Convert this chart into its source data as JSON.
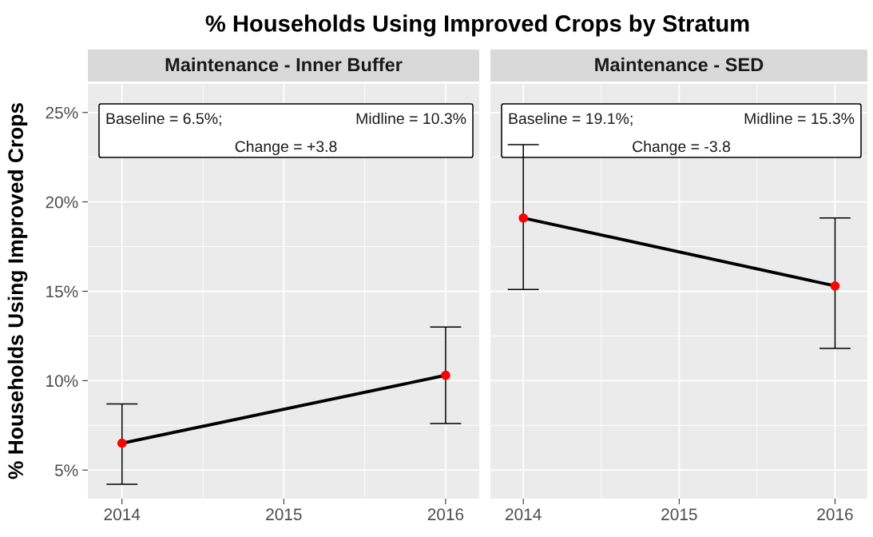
{
  "chart_data": [
    {
      "type": "line",
      "subtitle": "% Households Using Improved Crops by Stratum",
      "title": "Maintenance - Inner Buffer",
      "ylabel": "% Households Using Improved Crops",
      "x": [
        "2014",
        "2016"
      ],
      "xlim": [
        "2013-10-16",
        "2016-03-17"
      ],
      "xticks": [
        "2014",
        "2015",
        "2016"
      ],
      "ylim": [
        3.4,
        26.6
      ],
      "yticks": [
        {
          "value": 5,
          "label": "5%"
        },
        {
          "value": 10,
          "label": "10%"
        },
        {
          "value": 15,
          "label": "15%"
        },
        {
          "value": 20,
          "label": "20%"
        },
        {
          "value": 25,
          "label": "25%"
        }
      ],
      "grid": true,
      "annotations": [
        "Baseline = 6.5%;",
        "Midline = 10.3%",
        "Change = +3.8"
      ],
      "series": [
        {
          "color": "#000000",
          "values": [
            6.5,
            10.3
          ]
        },
        {
          "type": "scatter",
          "color": "#ff0000",
          "marker": "circle",
          "values": [
            6.5,
            10.3
          ],
          "errors": [
            [
              4.2,
              8.7
            ],
            [
              7.6,
              13.0
            ]
          ]
        }
      ]
    },
    {
      "type": "line",
      "title": "Maintenance - SED",
      "x": [
        "2014",
        "2016"
      ],
      "xlim": [
        "2013-10-16",
        "2016-03-17"
      ],
      "xticks": [
        "2014",
        "2015",
        "2016"
      ],
      "ylim": [
        3.4,
        26.6
      ],
      "yticks": [
        5,
        10,
        15,
        20,
        25
      ],
      "tick_labels": "x",
      "grid": true,
      "annotations": [
        "Baseline = 19.1%;",
        "Midline = 15.3%",
        "Change = -3.8"
      ],
      "series": [
        {
          "color": "#000000",
          "values": [
            19.1,
            15.3
          ]
        },
        {
          "type": "scatter",
          "color": "#ff0000",
          "marker": "circle",
          "values": [
            19.1,
            15.3
          ],
          "errors": [
            [
              15.1,
              23.2
            ],
            [
              11.8,
              19.1
            ]
          ]
        }
      ]
    }
  ]
}
